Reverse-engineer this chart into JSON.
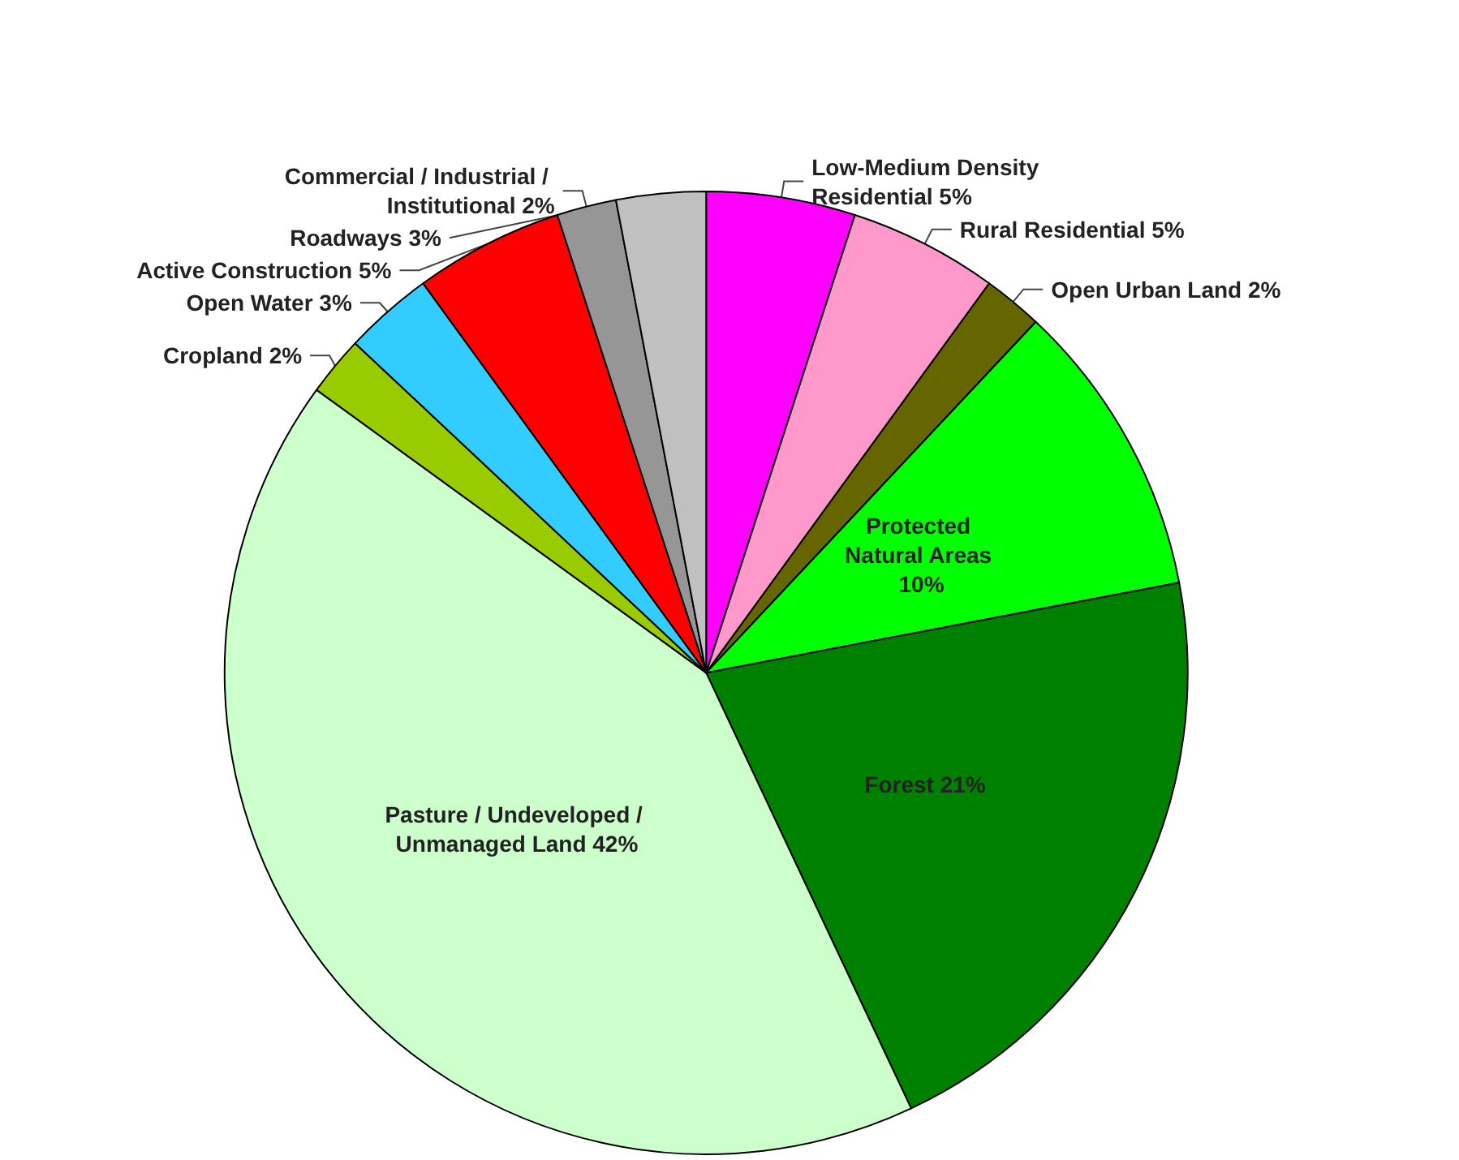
{
  "chart_data": {
    "type": "pie",
    "categories": [
      "Low-Medium Density Residential",
      "Rural Residential",
      "Open Urban Land",
      "Protected Natural Areas",
      "Forest",
      "Pasture / Undeveloped / Unmanaged Land",
      "Cropland",
      "Open Water",
      "Active Construction",
      "Commercial / Industrial / Institutional",
      "Roadways"
    ],
    "values": [
      5,
      5,
      2,
      10,
      21,
      42,
      2,
      3,
      5,
      2,
      3
    ],
    "value_labels": [
      "5%",
      "5%",
      "2%",
      "10%",
      "21%",
      "42%",
      "2%",
      "3%",
      "5%",
      "2%",
      "3%"
    ],
    "colors": [
      "#ff00ff",
      "#ff99cc",
      "#666600",
      "#00ff00",
      "#008000",
      "#ccffcc",
      "#99cc00",
      "#33ccff",
      "#ff0000",
      "#969696",
      "#c0c0c0"
    ]
  }
}
